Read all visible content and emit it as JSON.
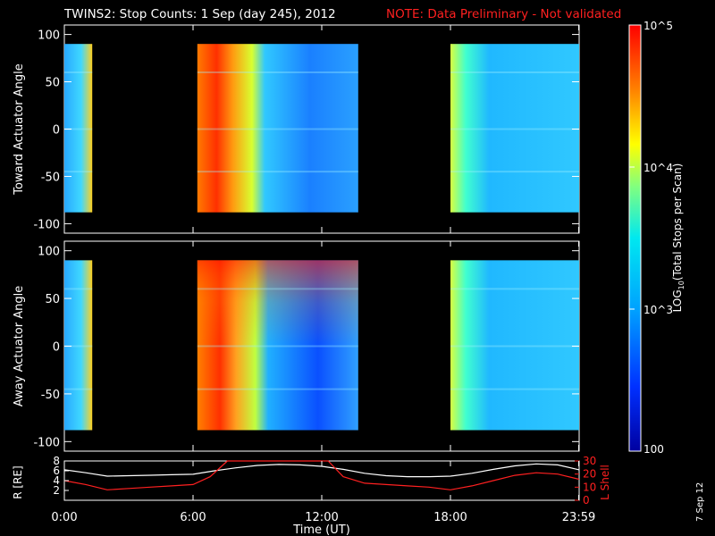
{
  "header": {
    "title": "TWINS2: Stop Counts:  1 Sep (day 245), 2012",
    "note": "NOTE: Data Preliminary - Not validated"
  },
  "footer": {
    "date_stamp": "7 Sep 12"
  },
  "colors": {
    "background": "#000000",
    "axes": "#ffffff",
    "note": "#ff2020",
    "r_line": "#ffffff",
    "lshell_line": "#ff2020"
  },
  "chart_data": [
    {
      "type": "heatmap",
      "ylabel": "Toward Actuator Angle",
      "ylim": [
        -110,
        110
      ],
      "yticks": [
        "100",
        "50",
        "0",
        "-50",
        "-100"
      ],
      "xlim": [
        0,
        24
      ],
      "data_segments_hours": [
        [
          0.0,
          1.3
        ],
        [
          6.2,
          13.7
        ],
        [
          18.0,
          24.0
        ]
      ],
      "angle_range": [
        -88,
        90
      ]
    },
    {
      "type": "heatmap",
      "ylabel": "Away Actuator Angle",
      "ylim": [
        -110,
        110
      ],
      "yticks": [
        "100",
        "50",
        "0",
        "-50",
        "-100"
      ],
      "xlim": [
        0,
        24
      ],
      "data_segments_hours": [
        [
          0.0,
          1.3
        ],
        [
          6.2,
          13.7
        ],
        [
          18.0,
          24.0
        ]
      ],
      "angle_range": [
        -88,
        90
      ]
    },
    {
      "type": "line",
      "xlabel": "Time (UT)",
      "xlim": [
        0,
        24
      ],
      "xticks": [
        "0:00",
        "6:00",
        "12:00",
        "18:00",
        "23:59"
      ],
      "ylabel_left": "R [RE]",
      "ylim_left": [
        0,
        8
      ],
      "yticks_left": [
        "8",
        "6",
        "4",
        "2"
      ],
      "ylabel_right": "L Shell",
      "ylim_right": [
        0,
        30
      ],
      "yticks_right": [
        "30",
        "20",
        "10",
        "0"
      ],
      "series": [
        {
          "key": "r",
          "axis": "left",
          "x": [
            0,
            1,
            2,
            3,
            4,
            5,
            6,
            7,
            8,
            9,
            10,
            11,
            12,
            13,
            14,
            15,
            16,
            17,
            18,
            19,
            20,
            21,
            22,
            23,
            24
          ],
          "y": [
            6.2,
            5.6,
            4.9,
            5.0,
            5.1,
            5.2,
            5.3,
            6.0,
            6.6,
            7.1,
            7.3,
            7.2,
            6.9,
            6.3,
            5.5,
            5.0,
            4.8,
            4.8,
            4.9,
            5.5,
            6.3,
            7.0,
            7.4,
            7.2,
            6.2
          ]
        },
        {
          "key": "lshell",
          "axis": "right",
          "x": [
            0,
            1,
            2,
            3,
            4,
            5,
            6,
            6.8,
            7.6,
            12.3,
            13,
            14,
            15,
            16,
            17,
            18,
            19,
            20,
            21,
            22,
            23,
            24
          ],
          "y": [
            15,
            12,
            8,
            9,
            10,
            11,
            12,
            18,
            30,
            30,
            18,
            13,
            12,
            11,
            10,
            8,
            11,
            15,
            19,
            21,
            20,
            16
          ]
        }
      ]
    }
  ],
  "colorbar": {
    "label_main": "LOG",
    "label_sub": "10",
    "label_rest": "(Total Stops per Scan)",
    "ticks": [
      "10^5",
      "10^4",
      "10^3",
      "100"
    ],
    "log_range": [
      2,
      5
    ]
  }
}
